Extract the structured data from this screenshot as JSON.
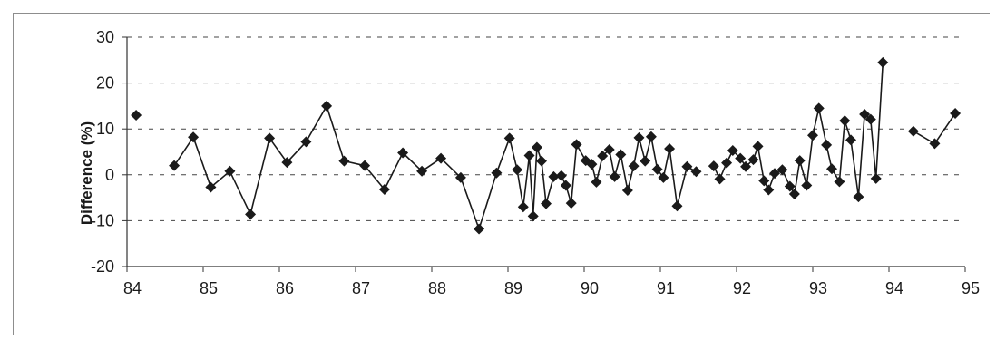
{
  "chart_data": {
    "type": "line",
    "title": "",
    "xlabel": "",
    "ylabel": "Difference (%)",
    "xlim": [
      84,
      95
    ],
    "ylim": [
      -20,
      30
    ],
    "x_ticks": [
      84,
      85,
      86,
      87,
      88,
      89,
      90,
      91,
      92,
      93,
      94,
      95
    ],
    "y_ticks": [
      30,
      20,
      10,
      0,
      -10,
      -20
    ],
    "grid": "horizontal dashed",
    "legend": "none",
    "marker": "diamond",
    "colors": {
      "series": "#1a1a1a",
      "grid": "#444444",
      "axis": "#333333"
    },
    "series": [
      {
        "segments": [
          [
            [
              84.12,
              13.0
            ]
          ],
          [
            [
              84.62,
              2.0
            ],
            [
              84.87,
              8.2
            ],
            [
              85.1,
              -2.7
            ],
            [
              85.35,
              0.8
            ],
            [
              85.62,
              -8.6
            ],
            [
              85.87,
              8.0
            ],
            [
              86.1,
              2.7
            ],
            [
              86.35,
              7.2
            ],
            [
              86.62,
              15.0
            ],
            [
              86.85,
              3.0
            ],
            [
              87.12,
              2.0
            ],
            [
              87.38,
              -3.2
            ],
            [
              87.62,
              4.8
            ],
            [
              87.87,
              0.8
            ],
            [
              88.12,
              3.6
            ],
            [
              88.38,
              -0.6
            ],
            [
              88.62,
              -11.8
            ],
            [
              88.85,
              0.4
            ],
            [
              89.02,
              8.0
            ],
            [
              89.12,
              1.1
            ],
            [
              89.2,
              -7.0
            ],
            [
              89.28,
              4.2
            ],
            [
              89.33,
              -9.0
            ],
            [
              89.38,
              6.0
            ],
            [
              89.44,
              3.0
            ],
            [
              89.5,
              -6.3
            ],
            [
              89.6,
              -0.4
            ],
            [
              89.7,
              -0.2
            ],
            [
              89.76,
              -2.3
            ],
            [
              89.83,
              -6.2
            ],
            [
              89.9,
              6.6
            ],
            [
              90.02,
              3.1
            ],
            [
              90.1,
              2.3
            ],
            [
              90.16,
              -1.6
            ],
            [
              90.24,
              4.1
            ],
            [
              90.33,
              5.5
            ],
            [
              90.4,
              -0.4
            ],
            [
              90.48,
              4.4
            ],
            [
              90.57,
              -3.4
            ],
            [
              90.65,
              1.9
            ],
            [
              90.72,
              8.1
            ],
            [
              90.8,
              3.0
            ],
            [
              90.88,
              8.3
            ],
            [
              90.96,
              1.2
            ],
            [
              91.04,
              -0.6
            ],
            [
              91.12,
              5.7
            ],
            [
              91.22,
              -6.8
            ],
            [
              91.35,
              1.8
            ],
            [
              91.47,
              0.7
            ]
          ],
          [
            [
              91.7,
              1.9
            ],
            [
              91.78,
              -0.9
            ],
            [
              91.87,
              2.6
            ],
            [
              91.95,
              5.3
            ],
            [
              92.05,
              3.6
            ],
            [
              92.12,
              1.8
            ],
            [
              92.22,
              3.3
            ],
            [
              92.28,
              6.2
            ],
            [
              92.36,
              -1.3
            ],
            [
              92.42,
              -3.3
            ],
            [
              92.5,
              0.3
            ],
            [
              92.6,
              1.1
            ],
            [
              92.7,
              -2.5
            ],
            [
              92.76,
              -4.2
            ],
            [
              92.83,
              3.1
            ],
            [
              92.92,
              -2.3
            ],
            [
              93.0,
              8.6
            ],
            [
              93.08,
              14.5
            ],
            [
              93.18,
              6.5
            ],
            [
              93.25,
              1.3
            ],
            [
              93.35,
              -1.5
            ],
            [
              93.42,
              11.8
            ],
            [
              93.5,
              7.6
            ],
            [
              93.6,
              -4.8
            ],
            [
              93.68,
              13.2
            ],
            [
              93.76,
              12.1
            ],
            [
              93.83,
              -0.8
            ],
            [
              93.92,
              24.5
            ]
          ],
          [
            [
              94.32,
              9.5
            ],
            [
              94.6,
              6.8
            ],
            [
              94.87,
              13.4
            ]
          ]
        ]
      }
    ]
  }
}
